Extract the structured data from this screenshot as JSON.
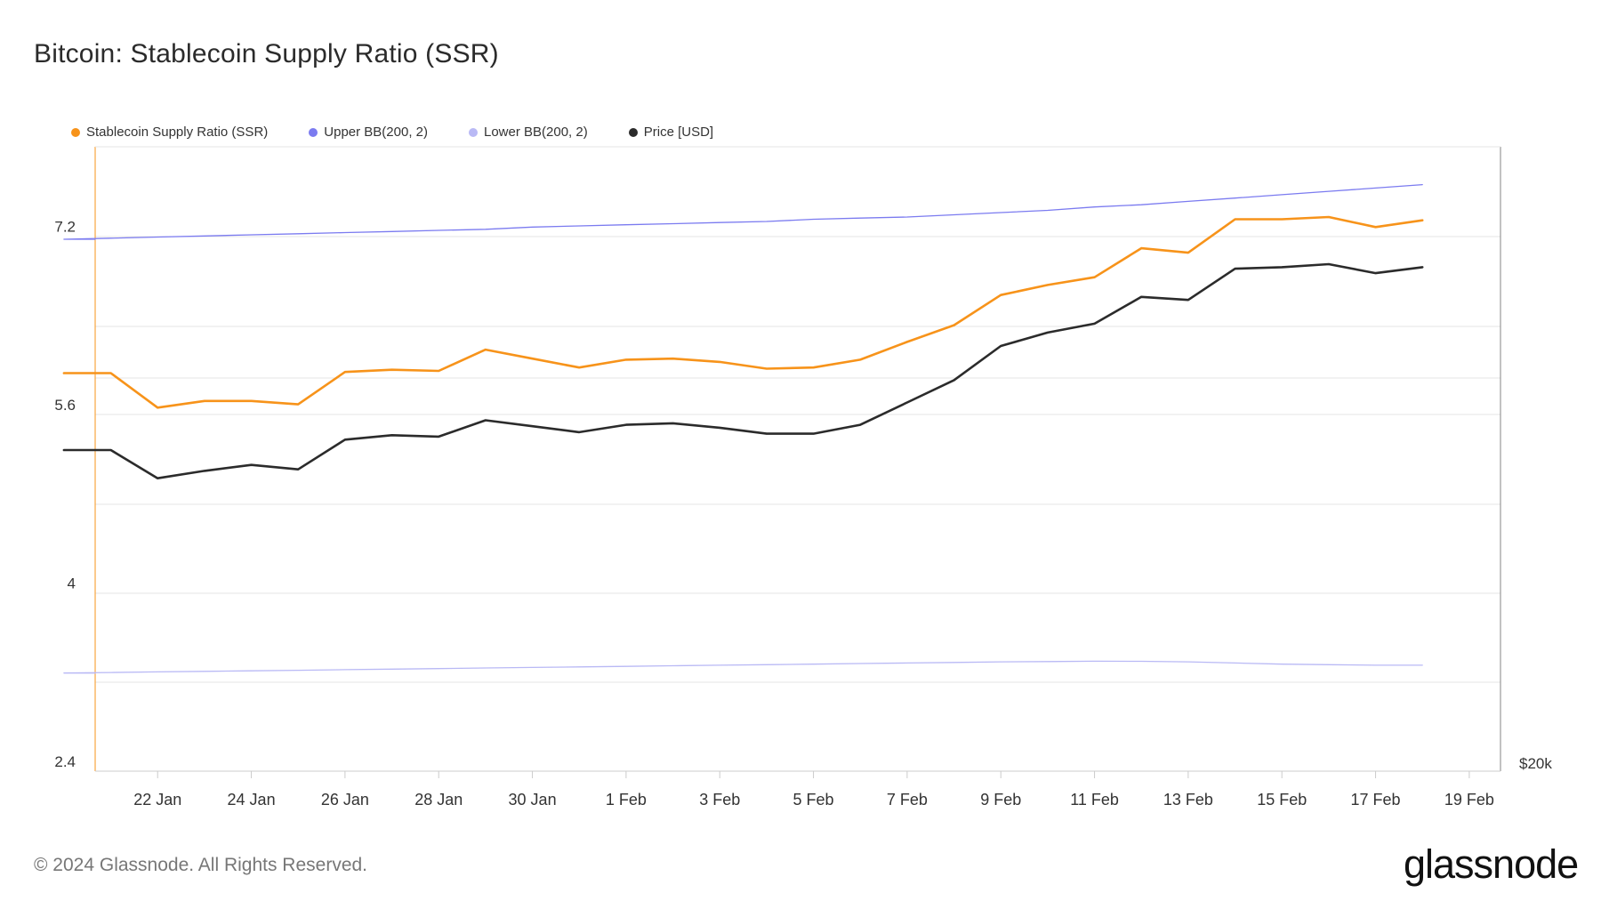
{
  "title": "Bitcoin: Stablecoin Supply Ratio (SSR)",
  "footer": "© 2024 Glassnode. All Rights Reserved.",
  "brand": "glassnode",
  "colors": {
    "ssr": "#f7931a",
    "upper_bb": "#7b7bf0",
    "lower_bb": "#b9b9f5",
    "price": "#2b2b2b",
    "grid": "#e6e6e6",
    "axis": "#cccccc"
  },
  "legend": [
    {
      "label": "Stablecoin Supply Ratio (SSR)",
      "color": "#f7931a"
    },
    {
      "label": "Upper BB(200, 2)",
      "color": "#7b7bf0"
    },
    {
      "label": "Lower BB(200, 2)",
      "color": "#b9b9f5"
    },
    {
      "label": "Price [USD]",
      "color": "#2b2b2b"
    }
  ],
  "chart_data": {
    "type": "line",
    "title": "Bitcoin: Stablecoin Supply Ratio (SSR)",
    "x": [
      "2024-01-20",
      "2024-01-21",
      "2024-01-22",
      "2024-01-23",
      "2024-01-24",
      "2024-01-25",
      "2024-01-26",
      "2024-01-27",
      "2024-01-28",
      "2024-01-29",
      "2024-01-30",
      "2024-01-31",
      "2024-02-01",
      "2024-02-02",
      "2024-02-03",
      "2024-02-04",
      "2024-02-05",
      "2024-02-06",
      "2024-02-07",
      "2024-02-08",
      "2024-02-09",
      "2024-02-10",
      "2024-02-11",
      "2024-02-12",
      "2024-02-13",
      "2024-02-14",
      "2024-02-15",
      "2024-02-16",
      "2024-02-17",
      "2024-02-18"
    ],
    "x_ticks": [
      "22 Jan",
      "24 Jan",
      "26 Jan",
      "28 Jan",
      "30 Jan",
      "1 Feb",
      "3 Feb",
      "5 Feb",
      "7 Feb",
      "9 Feb",
      "11 Feb",
      "13 Feb",
      "15 Feb",
      "17 Feb",
      "19 Feb"
    ],
    "x_tick_dates": [
      "2024-01-22",
      "2024-01-24",
      "2024-01-26",
      "2024-01-28",
      "2024-01-30",
      "2024-02-01",
      "2024-02-03",
      "2024-02-05",
      "2024-02-07",
      "2024-02-09",
      "2024-02-11",
      "2024-02-13",
      "2024-02-15",
      "2024-02-17",
      "2024-02-19"
    ],
    "x_range": [
      "2024-01-20 16:00",
      "2024-02-19 16:00"
    ],
    "y_left": {
      "ticks": [
        "2.4",
        "4",
        "5.6",
        "7.2"
      ],
      "range": [
        2.4,
        8.0
      ]
    },
    "y_right": {
      "ticks": [
        "$20k"
      ],
      "range": [
        20000,
        62000
      ]
    },
    "grid": true,
    "legend_position": "top-left",
    "series": [
      {
        "name": "Stablecoin Supply Ratio (SSR)",
        "axis": "left",
        "values": [
          5.97,
          5.97,
          5.66,
          5.72,
          5.72,
          5.69,
          5.98,
          6.0,
          5.99,
          6.18,
          6.1,
          6.02,
          6.09,
          6.1,
          6.07,
          6.01,
          6.02,
          6.09,
          6.25,
          6.4,
          6.67,
          6.76,
          6.83,
          7.09,
          7.05,
          7.35,
          7.35,
          7.37,
          7.28,
          7.34
        ]
      },
      {
        "name": "Upper BB(200, 2)",
        "axis": "left",
        "values": [
          7.17,
          7.18,
          7.19,
          7.2,
          7.21,
          7.22,
          7.23,
          7.24,
          7.25,
          7.26,
          7.28,
          7.29,
          7.3,
          7.31,
          7.32,
          7.33,
          7.35,
          7.36,
          7.37,
          7.39,
          7.41,
          7.43,
          7.46,
          7.48,
          7.51,
          7.54,
          7.57,
          7.6,
          7.63,
          7.66
        ]
      },
      {
        "name": "Lower BB(200, 2)",
        "axis": "left",
        "values": [
          3.28,
          3.285,
          3.29,
          3.295,
          3.3,
          3.305,
          3.31,
          3.315,
          3.32,
          3.325,
          3.33,
          3.335,
          3.34,
          3.345,
          3.35,
          3.355,
          3.36,
          3.365,
          3.37,
          3.375,
          3.38,
          3.383,
          3.386,
          3.385,
          3.38,
          3.37,
          3.36,
          3.355,
          3.35,
          3.35
        ]
      },
      {
        "name": "Price [USD]",
        "axis": "right",
        "values": [
          41600,
          41600,
          39700,
          40200,
          40600,
          40300,
          42300,
          42600,
          42500,
          43600,
          43200,
          42800,
          43300,
          43400,
          43100,
          42700,
          42700,
          43300,
          44800,
          46300,
          48600,
          49500,
          50100,
          51900,
          51700,
          53800,
          53900,
          54100,
          53500,
          53900
        ]
      }
    ]
  }
}
